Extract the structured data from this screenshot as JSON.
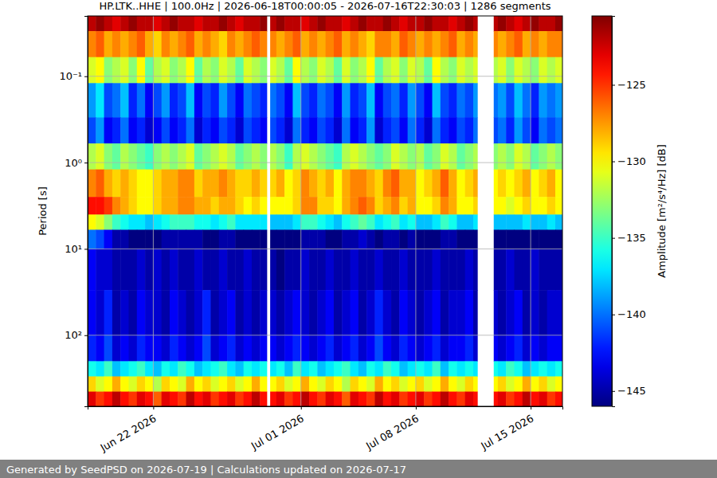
{
  "chart_data": {
    "type": "heatmap",
    "title": "HP.LTK..HHE | 100.0Hz | 2026-06-18T00:00:05 - 2026-07-16T22:30:03 | 1286 segments",
    "y_label": "Period [s]",
    "colorbar_label": "Amplitude [m²/s⁴/Hz] [dB]",
    "footer": "Generated by SeedPSD on 2026-07-19 | Calculations updated on 2026-07-17",
    "color": "jet",
    "log": "y",
    "grid": true,
    "xlim": [
      "2026-06-18T00:00:05",
      "2026-07-16T22:30:03"
    ],
    "ylim": [
      0.02,
      666
    ],
    "xticks": [
      {
        "value": "2026-06-22T00:00:00",
        "label": "Jun 22 2026"
      },
      {
        "value": "2026-07-01T00:00:00",
        "label": "Jul 01 2026"
      },
      {
        "value": "2026-07-08T00:00:00",
        "label": "Jul 08 2026"
      },
      {
        "value": "2026-07-15T00:00:00",
        "label": "Jul 15 2026"
      }
    ],
    "yticks": [
      {
        "value": 0.1,
        "label": "10⁻¹"
      },
      {
        "value": 1,
        "label": "10⁰"
      },
      {
        "value": 10,
        "label": "10¹"
      },
      {
        "value": 100,
        "label": "10²"
      }
    ],
    "colorbar_range": [
      -146,
      -120.5
    ],
    "colorbar_ticks": [
      {
        "value": -125,
        "label": "−125"
      },
      {
        "value": -130,
        "label": "−130"
      },
      {
        "value": -135,
        "label": "−135"
      },
      {
        "value": -140,
        "label": "−140"
      },
      {
        "value": -145,
        "label": "−145"
      }
    ],
    "x_edges": [
      "2026-06-18T00:00:05",
      "2026-06-18T12:00:00",
      "2026-06-19T00:00:00",
      "2026-06-19T12:00:00",
      "2026-06-20T00:00:00",
      "2026-06-20T12:00:00",
      "2026-06-21T00:00:00",
      "2026-06-21T12:00:00",
      "2026-06-22T00:00:00",
      "2026-06-22T12:00:00",
      "2026-06-23T00:00:00",
      "2026-06-23T12:00:00",
      "2026-06-24T00:00:00",
      "2026-06-24T12:00:00",
      "2026-06-25T00:00:00",
      "2026-06-25T12:00:00",
      "2026-06-26T00:00:00",
      "2026-06-26T12:00:00",
      "2026-06-27T00:00:00",
      "2026-06-27T12:00:00",
      "2026-06-28T00:00:00",
      "2026-06-28T12:00:00",
      "2026-06-28T22:00:00",
      "2026-06-29T03:00:00",
      "2026-06-29T12:00:00",
      "2026-06-30T00:00:00",
      "2026-06-30T12:00:00",
      "2026-07-01T00:00:00",
      "2026-07-01T12:00:00",
      "2026-07-02T00:00:00",
      "2026-07-02T12:00:00",
      "2026-07-03T00:00:00",
      "2026-07-03T12:00:00",
      "2026-07-04T00:00:00",
      "2026-07-04T12:00:00",
      "2026-07-05T00:00:00",
      "2026-07-05T12:00:00",
      "2026-07-06T00:00:00",
      "2026-07-06T12:00:00",
      "2026-07-07T00:00:00",
      "2026-07-07T12:00:00",
      "2026-07-08T00:00:00",
      "2026-07-08T12:00:00",
      "2026-07-09T00:00:00",
      "2026-07-09T12:00:00",
      "2026-07-10T00:00:00",
      "2026-07-10T12:00:00",
      "2026-07-11T00:00:00",
      "2026-07-11T12:00:00",
      "2026-07-11T18:00:00",
      "2026-07-12T18:00:00",
      "2026-07-13T00:00:00",
      "2026-07-13T12:00:00",
      "2026-07-14T00:00:00",
      "2026-07-14T12:00:00",
      "2026-07-15T00:00:00",
      "2026-07-15T12:00:00",
      "2026-07-16T00:00:00",
      "2026-07-16T12:00:00",
      "2026-07-16T22:30:03"
    ],
    "y_edges": [
      0.02,
      0.03,
      0.06,
      0.12,
      0.3,
      0.6,
      1.2,
      2.5,
      4,
      6,
      10,
      30,
      100,
      200,
      300,
      450,
      666
    ],
    "values": [
      [
        -122,
        -121,
        -122,
        -123,
        -122,
        -121,
        -122,
        -122,
        -123,
        -122,
        -121,
        -122,
        -122,
        -123,
        -122,
        -122,
        -121,
        -122,
        -123,
        -122,
        -122,
        -121,
        null,
        -122,
        -121,
        -122,
        -122,
        -123,
        -122,
        -121,
        -122,
        -122,
        -123,
        -122,
        -121,
        -122,
        -122,
        -121,
        -122,
        -123,
        -122,
        -122,
        -121,
        -122,
        -122,
        -123,
        -122,
        -121,
        -122,
        null,
        -122,
        -121,
        -122,
        -123,
        -122,
        -121,
        -122,
        -122,
        -121
      ],
      [
        -127,
        -126,
        -128,
        -127,
        -128,
        -127,
        -126,
        -128,
        -129,
        -127,
        -128,
        -127,
        -126,
        -128,
        -127,
        -128,
        -129,
        -127,
        -128,
        -127,
        -126,
        -127,
        null,
        -127,
        -128,
        -127,
        -126,
        -128,
        -127,
        -128,
        -127,
        -126,
        -128,
        -127,
        -128,
        -129,
        -127,
        -127,
        -128,
        -126,
        -127,
        -128,
        -127,
        -128,
        -127,
        -126,
        -128,
        -127,
        -128,
        null,
        -127,
        -128,
        -127,
        -126,
        -128,
        -127,
        -128,
        -127,
        -127
      ],
      [
        -131,
        -130,
        -133,
        -132,
        -131,
        -133,
        -130,
        -134,
        -132,
        -131,
        -133,
        -132,
        -130,
        -134,
        -132,
        -133,
        -131,
        -132,
        -134,
        -131,
        -132,
        -133,
        null,
        -131,
        -132,
        -134,
        -130,
        -132,
        -133,
        -131,
        -132,
        -134,
        -131,
        -133,
        -132,
        -130,
        -134,
        -132,
        -131,
        -133,
        -131,
        -132,
        -134,
        -130,
        -132,
        -133,
        -131,
        -132,
        -131,
        null,
        -132,
        -131,
        -133,
        -131,
        -132,
        -133,
        -131,
        -132,
        -131
      ],
      [
        -139,
        -137,
        -141,
        -140,
        -138,
        -142,
        -140,
        -143,
        -141,
        -139,
        -142,
        -141,
        -138,
        -143,
        -141,
        -142,
        -139,
        -141,
        -143,
        -140,
        -141,
        -142,
        null,
        -140,
        -141,
        -143,
        -138,
        -141,
        -142,
        -140,
        -141,
        -143,
        -139,
        -142,
        -141,
        -138,
        -143,
        -141,
        -140,
        -142,
        -139,
        -141,
        -143,
        -138,
        -141,
        -142,
        -140,
        -141,
        -139,
        null,
        -140,
        -139,
        -141,
        -138,
        -140,
        -142,
        -139,
        -140,
        -139
      ],
      [
        -141,
        -139,
        -143,
        -142,
        -140,
        -143,
        -142,
        -144,
        -143,
        -141,
        -143,
        -142,
        -140,
        -144,
        -142,
        -143,
        -141,
        -142,
        -144,
        -141,
        -142,
        -143,
        null,
        -141,
        -142,
        -144,
        -140,
        -142,
        -143,
        -141,
        -142,
        -144,
        -140,
        -143,
        -142,
        -139,
        -144,
        -142,
        -141,
        -143,
        -140,
        -142,
        -144,
        -140,
        -142,
        -143,
        -141,
        -142,
        -140,
        null,
        -141,
        -140,
        -142,
        -139,
        -141,
        -143,
        -140,
        -141,
        -140
      ],
      [
        -132,
        -131,
        -133,
        -134,
        -132,
        -133,
        -134,
        -135,
        -133,
        -132,
        -133,
        -132,
        -131,
        -134,
        -133,
        -132,
        -131,
        -132,
        -134,
        -133,
        -132,
        -133,
        null,
        -132,
        -133,
        -135,
        -132,
        -131,
        -132,
        -133,
        -134,
        -135,
        -132,
        -131,
        -132,
        -133,
        -134,
        -133,
        -131,
        -132,
        -133,
        -132,
        -134,
        -133,
        -131,
        -132,
        -134,
        -133,
        -132,
        null,
        -133,
        -132,
        -133,
        -131,
        -132,
        -134,
        -133,
        -132,
        -133
      ],
      [
        -127,
        -126,
        -128,
        -129,
        -128,
        -129,
        -130,
        -130,
        -129,
        -128,
        -128,
        -127,
        -127,
        -129,
        -128,
        -128,
        -127,
        -128,
        -129,
        -129,
        -128,
        -129,
        null,
        -129,
        -128,
        -130,
        -129,
        -127,
        -128,
        -129,
        -128,
        -130,
        -128,
        -127,
        -127,
        -128,
        -129,
        -127,
        -126,
        -128,
        -128,
        -130,
        -129,
        -128,
        -126,
        -128,
        -130,
        -129,
        -128,
        null,
        -130,
        -129,
        -130,
        -129,
        -128,
        -130,
        -129,
        -128,
        -130
      ],
      [
        -124,
        -124,
        -125,
        -127,
        -128,
        -129,
        -130,
        -130,
        -129,
        -128,
        -128,
        -127,
        -127,
        -128,
        -128,
        -129,
        -128,
        -128,
        -129,
        -130,
        -129,
        -130,
        null,
        -130,
        -130,
        -130,
        -129,
        -127,
        -127,
        -129,
        -129,
        -130,
        -128,
        -127,
        -126,
        -127,
        -129,
        -128,
        -127,
        -129,
        -128,
        -130,
        -130,
        -129,
        -127,
        -128,
        -130,
        -130,
        -129,
        null,
        -130,
        -130,
        -131,
        -130,
        -129,
        -130,
        -130,
        -129,
        -130
      ],
      [
        -130,
        -131,
        -133,
        -135,
        -136,
        -137,
        -137,
        -138,
        -137,
        -136,
        -135,
        -135,
        -135,
        -136,
        -136,
        -137,
        -136,
        -135,
        -137,
        -137,
        -137,
        -137,
        null,
        -138,
        -138,
        -138,
        -137,
        -135,
        -135,
        -136,
        -137,
        -138,
        -136,
        -135,
        -134,
        -135,
        -137,
        -136,
        -135,
        -137,
        -136,
        -138,
        -138,
        -137,
        -135,
        -136,
        -138,
        -138,
        -137,
        null,
        -138,
        -138,
        -138,
        -138,
        -137,
        -138,
        -138,
        -137,
        -138
      ],
      [
        -140,
        -141,
        -143,
        -145,
        -145,
        -146,
        -146,
        -146,
        -146,
        -145,
        -145,
        -145,
        -145,
        -145,
        -146,
        -146,
        -145,
        -145,
        -146,
        -146,
        -146,
        -146,
        null,
        -146,
        -146,
        -146,
        -146,
        -145,
        -145,
        -145,
        -146,
        -146,
        -145,
        -145,
        -144,
        -145,
        -146,
        -145,
        -145,
        -146,
        -145,
        -146,
        -146,
        -146,
        -145,
        -145,
        -146,
        -146,
        -146,
        null,
        -146,
        -146,
        -146,
        -146,
        -146,
        -146,
        -146,
        -146,
        -146
      ],
      [
        -143,
        -144,
        -144,
        -145,
        -145,
        -145,
        -144,
        -145,
        -144,
        -145,
        -144,
        -145,
        -145,
        -144,
        -145,
        -145,
        -144,
        -145,
        -145,
        -144,
        -145,
        -145,
        null,
        -145,
        -146,
        -145,
        -145,
        -144,
        -145,
        -145,
        -144,
        -145,
        -145,
        -144,
        -145,
        -145,
        -144,
        -145,
        -145,
        -144,
        -145,
        -145,
        -145,
        -144,
        -145,
        -145,
        -145,
        -144,
        -145,
        null,
        -145,
        -145,
        -144,
        -145,
        -145,
        -144,
        -145,
        -145,
        -145
      ],
      [
        -143,
        -144,
        -142,
        -145,
        -144,
        -145,
        -143,
        -144,
        -144,
        -145,
        -143,
        -144,
        -145,
        -144,
        -142,
        -145,
        -144,
        -143,
        -145,
        -144,
        -145,
        -144,
        null,
        -144,
        -145,
        -144,
        -143,
        -144,
        -145,
        -144,
        -143,
        -145,
        -144,
        -143,
        -145,
        -144,
        -142,
        -144,
        -145,
        -143,
        -144,
        -145,
        -144,
        -143,
        -145,
        -144,
        -144,
        -143,
        -145,
        null,
        -144,
        -145,
        -144,
        -143,
        -145,
        -144,
        -145,
        -144,
        -144
      ],
      [
        -142,
        -143,
        -141,
        -144,
        -143,
        -144,
        -142,
        -143,
        -143,
        -144,
        -142,
        -143,
        -144,
        -143,
        -141,
        -144,
        -143,
        -142,
        -144,
        -143,
        -144,
        -143,
        null,
        -143,
        -144,
        -143,
        -142,
        -143,
        -144,
        -143,
        -142,
        -144,
        -143,
        -142,
        -144,
        -143,
        -141,
        -143,
        -144,
        -142,
        -143,
        -144,
        -143,
        -142,
        -144,
        -143,
        -143,
        -142,
        -144,
        null,
        -143,
        -144,
        -143,
        -142,
        -144,
        -143,
        -144,
        -143,
        -143
      ],
      [
        -136,
        -137,
        -135,
        -138,
        -137,
        -136,
        -135,
        -137,
        -138,
        -136,
        -137,
        -135,
        -136,
        -138,
        -137,
        -136,
        -135,
        -137,
        -138,
        -136,
        -137,
        -136,
        null,
        -137,
        -136,
        -138,
        -135,
        -137,
        -136,
        -138,
        -137,
        -136,
        -135,
        -137,
        -138,
        -136,
        -137,
        -135,
        -136,
        -138,
        -137,
        -136,
        -137,
        -135,
        -138,
        -136,
        -137,
        -136,
        -137,
        null,
        -136,
        -137,
        -135,
        -136,
        -138,
        -137,
        -136,
        -137,
        -136
      ],
      [
        -129,
        -131,
        -130,
        -128,
        -130,
        -131,
        -129,
        -130,
        -132,
        -129,
        -130,
        -131,
        -128,
        -130,
        -129,
        -131,
        -130,
        -129,
        -131,
        -130,
        -128,
        -130,
        null,
        -130,
        -129,
        -131,
        -130,
        -128,
        -130,
        -131,
        -129,
        -130,
        -132,
        -129,
        -130,
        -131,
        -128,
        -130,
        -129,
        -131,
        -130,
        -129,
        -131,
        -130,
        -128,
        -130,
        -131,
        -129,
        -130,
        null,
        -130,
        -129,
        -131,
        -130,
        -128,
        -130,
        -129,
        -131,
        -130
      ],
      [
        -123,
        -125,
        -124,
        -122,
        -124,
        -125,
        -123,
        -124,
        -126,
        -123,
        -124,
        -125,
        -122,
        -124,
        -123,
        -125,
        -124,
        -123,
        -125,
        -124,
        -122,
        -124,
        null,
        -124,
        -123,
        -125,
        -124,
        -122,
        -124,
        -125,
        -123,
        -124,
        -126,
        -123,
        -124,
        -125,
        -122,
        -124,
        -123,
        -125,
        -124,
        -123,
        -125,
        -124,
        -122,
        -124,
        -125,
        -123,
        -124,
        null,
        -124,
        -123,
        -125,
        -124,
        -122,
        -124,
        -123,
        -125,
        -124
      ]
    ]
  }
}
